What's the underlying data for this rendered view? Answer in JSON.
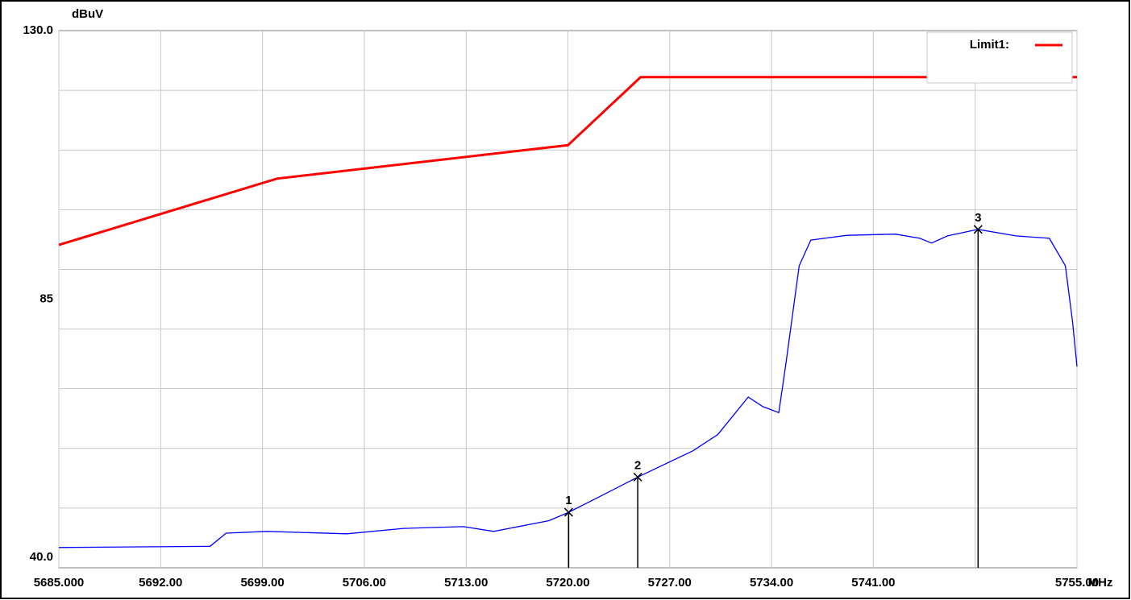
{
  "chart_data": {
    "type": "line",
    "y_unit": "dBuV",
    "x_unit": "MHz",
    "xlim": [
      5685,
      5755
    ],
    "ylim": [
      40,
      130
    ],
    "xticks": [
      {
        "value": 5685,
        "label": "5685.000"
      },
      {
        "value": 5692,
        "label": "5692.00"
      },
      {
        "value": 5699,
        "label": "5699.00"
      },
      {
        "value": 5706,
        "label": "5706.00"
      },
      {
        "value": 5713,
        "label": "5713.00"
      },
      {
        "value": 5720,
        "label": "5720.00"
      },
      {
        "value": 5727,
        "label": "5727.00"
      },
      {
        "value": 5734,
        "label": "5734.00"
      },
      {
        "value": 5741,
        "label": "5741.00"
      },
      {
        "value": 5748,
        "label": null
      },
      {
        "value": 5755,
        "label": "5755.00"
      }
    ],
    "yticks": [
      {
        "value": 130,
        "label": "130.0"
      },
      {
        "value": 85,
        "label": "85"
      },
      {
        "value": 40,
        "label": "40.0"
      }
    ],
    "ygrid": [
      50,
      60,
      70,
      80,
      90,
      100,
      110,
      120
    ],
    "grid": true,
    "legend": "upper right",
    "series": [
      {
        "name": "Limit1:",
        "color": "#ff0000",
        "x": [
          5685,
          5700,
          5720,
          5725,
          5755
        ],
        "values": [
          94.1,
          105.2,
          110.8,
          122.2,
          122.2
        ]
      },
      {
        "color": "#0000ff",
        "x": [
          5685,
          5695.4,
          5696.5,
          5699.3,
          5704.8,
          5708.7,
          5712.8,
          5714.9,
          5718.7,
          5720.05,
          5722.0,
          5724.8,
          5728.6,
          5730.3,
          5732.4,
          5733.4,
          5734.5,
          5735.0,
          5735.9,
          5736.7,
          5739.2,
          5742.5,
          5744.2,
          5745.0,
          5746.1,
          5748.2,
          5750.8,
          5753.1,
          5754.2,
          5754.7,
          5755
        ],
        "values": [
          43.4,
          43.6,
          45.8,
          46.1,
          45.7,
          46.6,
          46.9,
          46.1,
          47.9,
          49.3,
          51.7,
          55.2,
          59.6,
          62.3,
          68.6,
          67.0,
          66.0,
          74.4,
          90.6,
          94.9,
          95.7,
          95.9,
          95.2,
          94.4,
          95.6,
          96.7,
          95.6,
          95.2,
          90.6,
          81.1,
          73.7
        ]
      }
    ],
    "markers": [
      {
        "label": "1",
        "x": 5720.05,
        "value": 49.3
      },
      {
        "label": "2",
        "x": 5724.8,
        "value": 55.2
      },
      {
        "label": "3",
        "x": 5748.2,
        "value": 96.7
      }
    ]
  }
}
